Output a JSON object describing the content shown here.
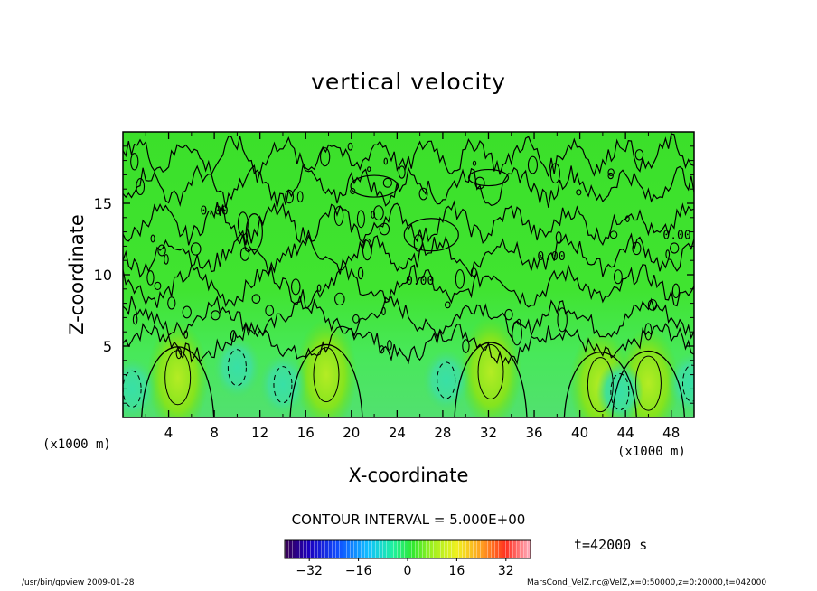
{
  "chart_data": {
    "type": "heatmap",
    "title": "vertical velocity",
    "xlabel": "X-coordinate",
    "ylabel": "Z-coordinate",
    "x_unit_label": "(x1000 m)",
    "z_unit_label": "(x1000 m)",
    "xlim": [
      0,
      50
    ],
    "ylim": [
      0,
      20
    ],
    "x_ticks": [
      "4",
      "8",
      "12",
      "16",
      "20",
      "24",
      "28",
      "32",
      "36",
      "40",
      "44",
      "48"
    ],
    "x_tick_values": [
      4,
      8,
      12,
      16,
      20,
      24,
      28,
      32,
      36,
      40,
      44,
      48
    ],
    "y_ticks": [
      "5",
      "10",
      "15"
    ],
    "y_tick_values": [
      5,
      10,
      15
    ],
    "contour_interval_label": "CONTOUR INTERVAL = 5.000E+00",
    "contour_labels": [
      {
        "text": "0.00",
        "x": 48.5,
        "z": 12.5
      },
      {
        "text": "0.00",
        "x": 37.5,
        "z": 11.0
      },
      {
        "text": "0.00",
        "x": 26.0,
        "z": 9.3
      },
      {
        "text": "0.00",
        "x": 8.0,
        "z": 14.2
      }
    ],
    "updraft_cores": [
      {
        "x": 4.8,
        "z": 2.8,
        "value": 10
      },
      {
        "x": 17.8,
        "z": 3.0,
        "value": 10
      },
      {
        "x": 32.2,
        "z": 3.2,
        "value": 6
      },
      {
        "x": 41.8,
        "z": 2.3,
        "value": 10
      },
      {
        "x": 46.0,
        "z": 2.4,
        "value": 10
      }
    ],
    "downdraft_cores": [
      {
        "x": 0.8,
        "z": 2.0,
        "value": -5
      },
      {
        "x": 10.0,
        "z": 3.5,
        "value": -5
      },
      {
        "x": 14.0,
        "z": 2.3,
        "value": -5
      },
      {
        "x": 28.3,
        "z": 2.6,
        "value": -6
      },
      {
        "x": 43.5,
        "z": 1.8,
        "value": -5
      },
      {
        "x": 49.8,
        "z": 2.4,
        "value": -5
      }
    ],
    "colorbar": {
      "min": -40,
      "max": 40,
      "ticks": [
        "−32",
        "−16",
        "0",
        "16",
        "32"
      ],
      "tick_values": [
        -32,
        -16,
        0,
        16,
        32
      ]
    },
    "time_label": "t=42000 s"
  },
  "footer": {
    "left": "/usr/bin/gpview   2009-01-28",
    "right": "MarsCond_VelZ.nc@VelZ,x=0:50000,z=0:20000,t=042000"
  }
}
